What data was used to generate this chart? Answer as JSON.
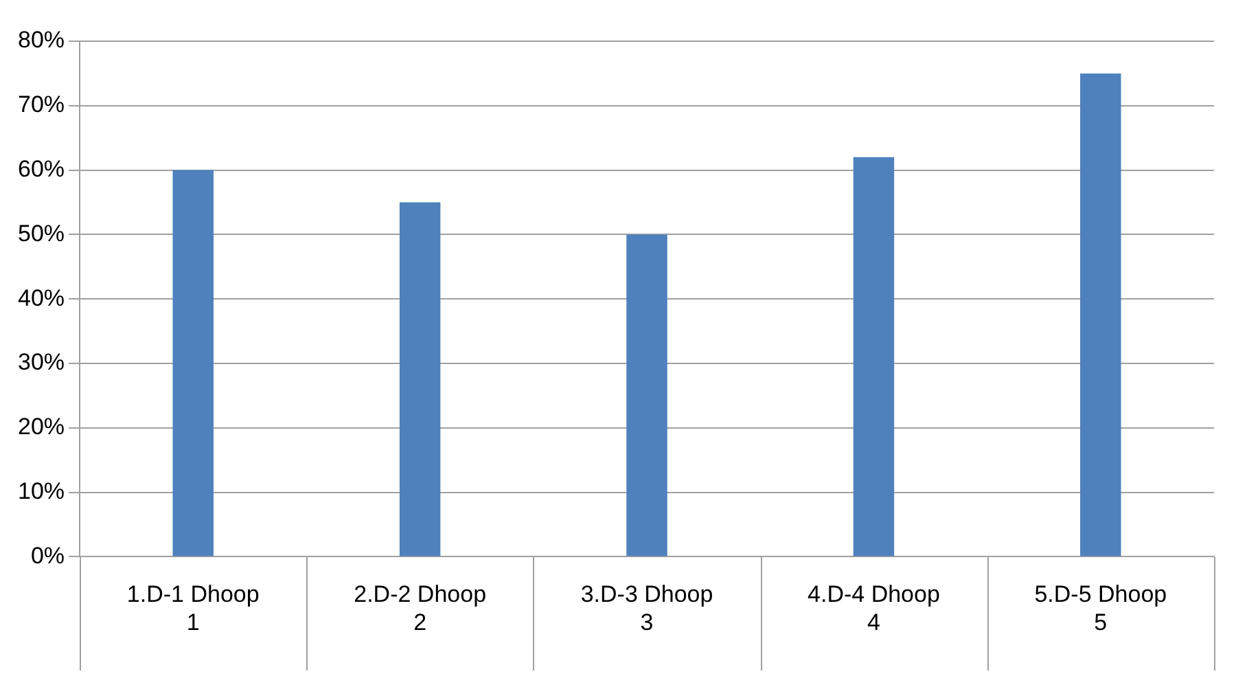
{
  "chart_data": {
    "type": "bar",
    "categories": [
      "1.D-1 Dhoop\n1",
      "2.D-2 Dhoop\n2",
      "3.D-3 Dhoop\n3",
      "4.D-4 Dhoop\n4",
      "5.D-5 Dhoop\n5"
    ],
    "values": [
      60,
      55,
      50,
      62,
      75
    ],
    "color": "#4f81bd",
    "ylim": [
      0,
      80
    ],
    "yticks": [
      {
        "value": 0,
        "label": "0%"
      },
      {
        "value": 10,
        "label": "10%"
      },
      {
        "value": 20,
        "label": "20%"
      },
      {
        "value": 30,
        "label": "30%"
      },
      {
        "value": 40,
        "label": "40%"
      },
      {
        "value": 50,
        "label": "50%"
      },
      {
        "value": 60,
        "label": "60%"
      },
      {
        "value": 70,
        "label": "70%"
      },
      {
        "value": 80,
        "label": "80%"
      }
    ],
    "grid": "y"
  }
}
